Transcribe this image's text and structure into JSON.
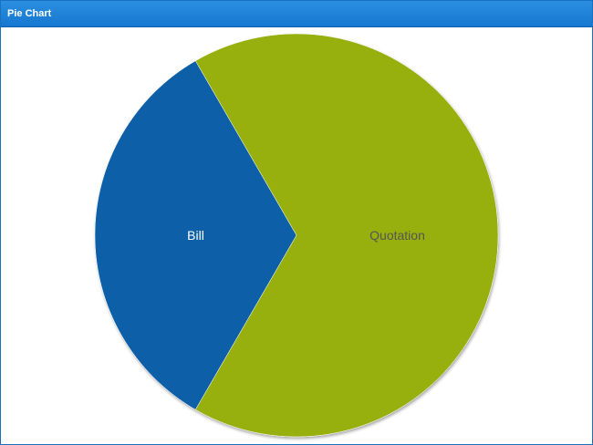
{
  "panel": {
    "title": "Pie Chart"
  },
  "chart_data": {
    "type": "pie",
    "title": "",
    "categories": [
      "Bill",
      "Quotation"
    ],
    "values": [
      33.3,
      66.7
    ],
    "colors": [
      "#1160a8",
      "#97b00c"
    ],
    "label_colors": [
      "#ffffff",
      "#555555"
    ],
    "legend": "none"
  }
}
